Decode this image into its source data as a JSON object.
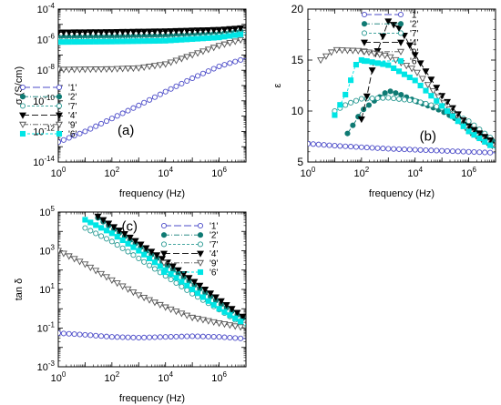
{
  "chart_data": [
    {
      "type": "line",
      "panel_label": "(a)",
      "xlabel": "frequency (Hz)",
      "ylabel": "σ (S/cm)",
      "x_scale": "log",
      "y_scale": "log",
      "xlim": [
        1,
        10000000
      ],
      "ylim": [
        1e-14,
        0.0001
      ],
      "grid": false,
      "legend_position": "bottom-right",
      "x_ticks": [
        {
          "value": 1,
          "base": "10",
          "exp": "0"
        },
        {
          "value": 100,
          "base": "10",
          "exp": "2"
        },
        {
          "value": 10000,
          "base": "10",
          "exp": "4"
        },
        {
          "value": 1000000,
          "base": "10",
          "exp": "6"
        }
      ],
      "y_ticks": [
        {
          "value": 1e-14,
          "base": "10",
          "exp": "-14"
        },
        {
          "value": 1e-12,
          "base": "10",
          "exp": "-12"
        },
        {
          "value": 1e-10,
          "base": "10",
          "exp": "-10"
        },
        {
          "value": 1e-08,
          "base": "10",
          "exp": "-8"
        },
        {
          "value": 1e-06,
          "base": "10",
          "exp": "-6"
        },
        {
          "value": 0.0001,
          "base": "10",
          "exp": "-4"
        }
      ],
      "series": [
        {
          "name": "'1'",
          "color": "#4b4bc8",
          "marker": "circle-open",
          "dash": "8,3",
          "points": [
            [
              1,
              2e-13
            ],
            [
              10,
              1e-12
            ],
            [
              100,
              7e-12
            ],
            [
              1000,
              5e-11
            ],
            [
              10000,
              4e-10
            ],
            [
              100000,
              3e-09
            ],
            [
              1000000,
              1.8e-08
            ],
            [
              10000000,
              6e-08
            ]
          ]
        },
        {
          "name": "'2'",
          "color": "#0f7a73",
          "marker": "circle-filled",
          "dash": "6,2,1,2",
          "points": [
            [
              1,
              1.5e-06
            ],
            [
              100,
              1.6e-06
            ],
            [
              10000,
              1.8e-06
            ],
            [
              1000000,
              2.5e-06
            ],
            [
              10000000,
              4e-06
            ]
          ]
        },
        {
          "name": "'7'",
          "color": "#2a9a93",
          "marker": "circle-open",
          "dash": "3,2",
          "points": [
            [
              1,
              9e-07
            ],
            [
              100,
              9.5e-07
            ],
            [
              10000,
              1.1e-06
            ],
            [
              1000000,
              1.8e-06
            ],
            [
              10000000,
              3e-06
            ]
          ]
        },
        {
          "name": "'4'",
          "color": "#000000",
          "marker": "triangle-down-filled",
          "dash": "7,3",
          "points": [
            [
              1,
              3e-06
            ],
            [
              100,
              3.2e-06
            ],
            [
              10000,
              3.6e-06
            ],
            [
              1000000,
              4.5e-06
            ],
            [
              10000000,
              6e-06
            ]
          ]
        },
        {
          "name": "'9'",
          "color": "#555555",
          "marker": "triangle-down-open",
          "dash": "6,2,1,2",
          "points": [
            [
              1,
              1.1e-08
            ],
            [
              100,
              1.2e-08
            ],
            [
              1000,
              1.4e-08
            ],
            [
              10000,
              2.5e-08
            ],
            [
              100000,
              1e-07
            ],
            [
              1000000,
              4e-07
            ],
            [
              10000000,
              1.2e-06
            ]
          ]
        },
        {
          "name": "'6'",
          "color": "#00e5e5",
          "marker": "square-filled",
          "dash": "3,2",
          "points": [
            [
              1,
              7e-07
            ],
            [
              100,
              7.5e-07
            ],
            [
              10000,
              8.5e-07
            ],
            [
              1000000,
              1.4e-06
            ],
            [
              10000000,
              2.5e-06
            ]
          ]
        }
      ]
    },
    {
      "type": "line",
      "panel_label": "(b)",
      "xlabel": "frequency (Hz)",
      "ylabel": "ε",
      "x_scale": "log",
      "y_scale": "linear",
      "xlim": [
        1,
        10000000
      ],
      "ylim": [
        5,
        20
      ],
      "grid": false,
      "legend_position": "top-right",
      "x_ticks": [
        {
          "value": 1,
          "base": "10",
          "exp": "0"
        },
        {
          "value": 100,
          "base": "10",
          "exp": "2"
        },
        {
          "value": 10000,
          "base": "10",
          "exp": "4"
        },
        {
          "value": 1000000,
          "base": "10",
          "exp": "6"
        }
      ],
      "y_ticks": [
        {
          "value": 5,
          "label": "5"
        },
        {
          "value": 10,
          "label": "10"
        },
        {
          "value": 15,
          "label": "15"
        },
        {
          "value": 20,
          "label": "20"
        }
      ],
      "series": [
        {
          "name": "'1'",
          "color": "#4b4bc8",
          "marker": "circle-open",
          "dash": "8,3",
          "points": [
            [
              1,
              6.8
            ],
            [
              10,
              6.6
            ],
            [
              100,
              6.45
            ],
            [
              1000,
              6.3
            ],
            [
              10000,
              6.2
            ],
            [
              100000,
              6.1
            ],
            [
              1000000,
              6.0
            ],
            [
              10000000,
              5.9
            ]
          ]
        },
        {
          "name": "'2'",
          "color": "#0f7a73",
          "marker": "circle-filled",
          "dash": "6,2,1,2",
          "points": [
            [
              30,
              7.8
            ],
            [
              60,
              9.0
            ],
            [
              100,
              10.0
            ],
            [
              300,
              11.0
            ],
            [
              1000,
              12.0
            ],
            [
              3000,
              11.6
            ],
            [
              10000,
              11.0
            ],
            [
              100000,
              10.0
            ],
            [
              1000000,
              8.5
            ],
            [
              10000000,
              6.9
            ]
          ]
        },
        {
          "name": "'7'",
          "color": "#2a9a93",
          "marker": "circle-open",
          "dash": "3,2",
          "points": [
            [
              10,
              10.0
            ],
            [
              30,
              10.7
            ],
            [
              100,
              11.2
            ],
            [
              1000,
              11.3
            ],
            [
              10000,
              11.0
            ],
            [
              100000,
              10.3
            ],
            [
              1000000,
              9.0
            ],
            [
              10000000,
              7.0
            ]
          ]
        },
        {
          "name": "'4'",
          "color": "#000000",
          "marker": "triangle-down-filled",
          "dash": "7,3",
          "points": [
            [
              100,
              9.2
            ],
            [
              160,
              11.5
            ],
            [
              300,
              15.0
            ],
            [
              1000,
              18.8
            ],
            [
              3000,
              18.0
            ],
            [
              10000,
              15.5
            ],
            [
              100000,
              11.5
            ],
            [
              1000000,
              8.5
            ],
            [
              10000000,
              6.8
            ]
          ]
        },
        {
          "name": "'9'",
          "color": "#555555",
          "marker": "triangle-down-open",
          "dash": "6,2,1,2",
          "points": [
            [
              3,
              15.0
            ],
            [
              10,
              16.0
            ],
            [
              100,
              15.9
            ],
            [
              1000,
              15.4
            ],
            [
              10000,
              14.0
            ],
            [
              100000,
              11.0
            ],
            [
              1000000,
              8.0
            ],
            [
              10000000,
              6.4
            ]
          ]
        },
        {
          "name": "'6'",
          "color": "#00e5e5",
          "marker": "square-filled",
          "dash": "3,2",
          "points": [
            [
              10,
              9.6
            ],
            [
              30,
              12.0
            ],
            [
              60,
              14.5
            ],
            [
              100,
              15.0
            ],
            [
              1000,
              14.5
            ],
            [
              10000,
              13.0
            ],
            [
              100000,
              10.5
            ],
            [
              1000000,
              8.0
            ],
            [
              10000000,
              6.3
            ]
          ]
        }
      ]
    },
    {
      "type": "line",
      "panel_label": "(c)",
      "xlabel": "frequency (Hz)",
      "ylabel": "tan δ",
      "x_scale": "log",
      "y_scale": "log",
      "xlim": [
        1,
        10000000
      ],
      "ylim": [
        0.001,
        100000
      ],
      "grid": false,
      "legend_position": "top-right",
      "x_ticks": [
        {
          "value": 1,
          "base": "10",
          "exp": "0"
        },
        {
          "value": 100,
          "base": "10",
          "exp": "2"
        },
        {
          "value": 10000,
          "base": "10",
          "exp": "4"
        },
        {
          "value": 1000000,
          "base": "10",
          "exp": "6"
        }
      ],
      "y_ticks": [
        {
          "value": 0.001,
          "base": "10",
          "exp": "-3"
        },
        {
          "value": 0.1,
          "base": "10",
          "exp": "-1"
        },
        {
          "value": 10,
          "base": "10",
          "exp": "1"
        },
        {
          "value": 1000,
          "base": "10",
          "exp": "3"
        },
        {
          "value": 100000,
          "base": "10",
          "exp": "5"
        }
      ],
      "series": [
        {
          "name": "'1'",
          "color": "#4b4bc8",
          "marker": "circle-open",
          "dash": "8,3",
          "points": [
            [
              1,
              0.055
            ],
            [
              10,
              0.045
            ],
            [
              100,
              0.035
            ],
            [
              1000,
              0.032
            ],
            [
              10000,
              0.035
            ],
            [
              100000,
              0.038
            ],
            [
              1000000,
              0.035
            ],
            [
              10000000,
              0.028
            ]
          ]
        },
        {
          "name": "'2'",
          "color": "#0f7a73",
          "marker": "circle-filled",
          "dash": "6,2,1,2",
          "points": [
            [
              30,
              50000
            ],
            [
              100,
              15000
            ],
            [
              1000,
              1800
            ],
            [
              10000,
              200
            ],
            [
              100000,
              20
            ],
            [
              1000000,
              2.0
            ],
            [
              10000000,
              0.25
            ]
          ]
        },
        {
          "name": "'7'",
          "color": "#2a9a93",
          "marker": "circle-open",
          "dash": "3,2",
          "points": [
            [
              10,
              15000
            ],
            [
              100,
              3000
            ],
            [
              1000,
              400
            ],
            [
              10000,
              50
            ],
            [
              100000,
              6
            ],
            [
              1000000,
              0.9
            ],
            [
              10000000,
              0.12
            ]
          ]
        },
        {
          "name": "'4'",
          "color": "#000000",
          "marker": "triangle-down-filled",
          "dash": "7,3",
          "points": [
            [
              30,
              60000
            ],
            [
              100,
              20000
            ],
            [
              1000,
              2500
            ],
            [
              10000,
              300
            ],
            [
              100000,
              30
            ],
            [
              1000000,
              3.0
            ],
            [
              10000000,
              0.3
            ]
          ]
        },
        {
          "name": "'9'",
          "color": "#555555",
          "marker": "triangle-down-open",
          "dash": "6,2,1,2",
          "points": [
            [
              1,
              1000
            ],
            [
              10,
              200
            ],
            [
              100,
              30
            ],
            [
              1000,
              5
            ],
            [
              10000,
              1.2
            ],
            [
              100000,
              0.35
            ],
            [
              1000000,
              0.18
            ],
            [
              10000000,
              0.1
            ]
          ]
        },
        {
          "name": "'6'",
          "color": "#00e5e5",
          "marker": "square-filled",
          "dash": "3,2",
          "points": [
            [
              10,
              40000
            ],
            [
              100,
              8000
            ],
            [
              1000,
              1000
            ],
            [
              10000,
              100
            ],
            [
              100000,
              10
            ],
            [
              1000000,
              1.0
            ],
            [
              10000000,
              0.15
            ]
          ]
        }
      ]
    }
  ]
}
